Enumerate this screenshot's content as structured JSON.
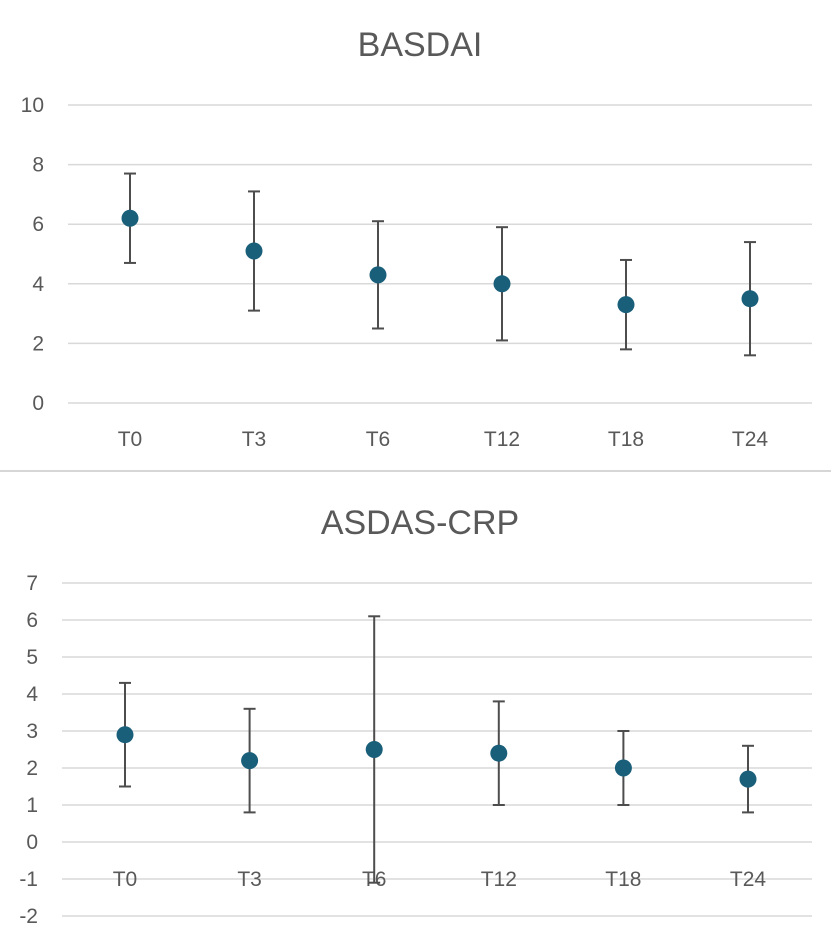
{
  "colors": {
    "marker": "#1a5f7a",
    "error_bar": "#4d4d4d",
    "grid": "#d9d9d9",
    "text": "#595959"
  },
  "chart_data": [
    {
      "type": "scatter",
      "title": "BASDAI",
      "categories": [
        "T0",
        "T3",
        "T6",
        "T12",
        "T18",
        "T24"
      ],
      "values": [
        6.2,
        5.1,
        4.3,
        4.0,
        3.3,
        3.5
      ],
      "error_low": [
        4.7,
        3.1,
        2.5,
        2.1,
        1.8,
        1.6
      ],
      "error_high": [
        7.7,
        7.1,
        6.1,
        5.9,
        4.8,
        5.4
      ],
      "ylim": [
        0,
        10
      ],
      "yticks": [
        0,
        2,
        4,
        6,
        8,
        10
      ],
      "xlabel": "",
      "ylabel": "",
      "grid": true
    },
    {
      "type": "scatter",
      "title": "ASDAS-CRP",
      "categories": [
        "T0",
        "T3",
        "T6",
        "T12",
        "T18",
        "T24"
      ],
      "values": [
        2.9,
        2.2,
        2.5,
        2.4,
        2.0,
        1.7
      ],
      "error_low": [
        1.5,
        0.8,
        -1.1,
        1.0,
        1.0,
        0.8
      ],
      "error_high": [
        4.3,
        3.6,
        6.1,
        3.8,
        3.0,
        2.6
      ],
      "ylim": [
        -2,
        7
      ],
      "yticks": [
        -2,
        -1,
        0,
        1,
        2,
        3,
        4,
        5,
        6,
        7
      ],
      "xlabel": "",
      "ylabel": "",
      "grid": true
    }
  ]
}
